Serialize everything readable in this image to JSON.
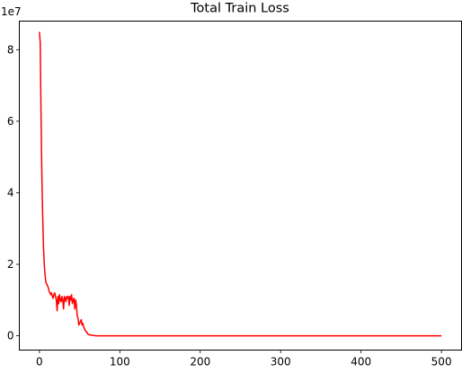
{
  "chart_data": {
    "type": "line",
    "title": "Total Train Loss",
    "xlabel": "",
    "ylabel": "",
    "y_offset_label": "1e7",
    "xlim": [
      -25,
      525
    ],
    "ylim": [
      -0.4,
      8.8
    ],
    "x_ticks": [
      0,
      100,
      200,
      300,
      400,
      500
    ],
    "y_ticks": [
      0,
      2,
      4,
      6,
      8
    ],
    "grid": false,
    "line_color": "#ff0000",
    "series": [
      {
        "x": [
          0,
          1,
          2,
          3,
          4,
          5,
          6,
          7,
          8,
          9,
          10,
          11,
          12,
          13,
          14,
          15,
          16,
          17,
          18,
          19,
          20,
          21,
          22,
          23,
          24,
          25,
          26,
          27,
          28,
          29,
          30,
          31,
          32,
          33,
          34,
          35,
          36,
          37,
          38,
          39,
          40,
          41,
          42,
          43,
          44,
          45,
          46,
          47,
          48,
          49,
          50,
          51,
          52,
          53,
          54,
          55,
          56,
          57,
          58,
          59,
          60,
          62,
          64,
          66,
          68,
          70,
          75,
          80,
          100,
          150,
          200,
          300,
          400,
          500
        ],
        "values": [
          8.5,
          8.2,
          6.2,
          4.5,
          3.4,
          2.5,
          2.0,
          1.7,
          1.5,
          1.45,
          1.4,
          1.35,
          1.25,
          1.2,
          1.15,
          1.2,
          1.1,
          1.05,
          1.15,
          1.2,
          1.1,
          1.0,
          0.7,
          1.1,
          0.9,
          1.15,
          1.0,
          0.95,
          1.1,
          1.0,
          0.75,
          1.1,
          1.05,
          0.95,
          1.1,
          1.05,
          1.1,
          0.85,
          1.1,
          1.0,
          1.15,
          0.9,
          1.0,
          1.05,
          0.75,
          1.0,
          0.85,
          0.55,
          0.5,
          0.3,
          0.35,
          0.4,
          0.45,
          0.3,
          0.35,
          0.25,
          0.2,
          0.15,
          0.12,
          0.1,
          0.05,
          0.03,
          0.02,
          0.01,
          0.01,
          0.0,
          0.0,
          0.0,
          0.0,
          0.0,
          0.0,
          0.0,
          0.0,
          0.0
        ]
      }
    ]
  }
}
